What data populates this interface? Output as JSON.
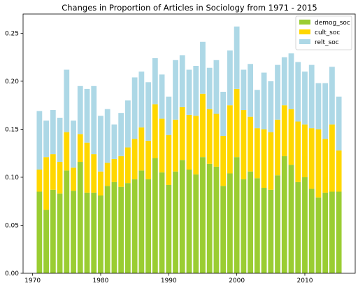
{
  "chart_data": {
    "type": "bar",
    "stacked": true,
    "title": "Changes in Proportion of Articles in Sociology from 1971 - 2015",
    "xlabel": "",
    "ylabel": "",
    "x": [
      1971,
      1972,
      1973,
      1974,
      1975,
      1976,
      1977,
      1978,
      1979,
      1980,
      1981,
      1982,
      1983,
      1984,
      1985,
      1986,
      1987,
      1988,
      1989,
      1990,
      1991,
      1992,
      1993,
      1994,
      1995,
      1996,
      1997,
      1998,
      1999,
      2000,
      2001,
      2002,
      2003,
      2004,
      2005,
      2006,
      2007,
      2008,
      2009,
      2010,
      2011,
      2012,
      2013,
      2014,
      2015
    ],
    "xlim": [
      1968.6,
      2017.4
    ],
    "ylim": [
      0,
      0.27
    ],
    "x_ticks": [
      1970,
      1980,
      1990,
      2000,
      2010
    ],
    "y_ticks": [
      0.0,
      0.05,
      0.1,
      0.15,
      0.2,
      0.25
    ],
    "x_tick_labels": [
      "1970",
      "1980",
      "1990",
      "2000",
      "2010"
    ],
    "y_tick_labels": [
      "0.00",
      "0.05",
      "0.10",
      "0.15",
      "0.20",
      "0.25"
    ],
    "grid": false,
    "legend_position": "top-right",
    "series": [
      {
        "name": "demog_soc",
        "color": "#9acd32",
        "values": [
          0.085,
          0.066,
          0.087,
          0.083,
          0.107,
          0.086,
          0.116,
          0.084,
          0.084,
          0.081,
          0.091,
          0.095,
          0.09,
          0.094,
          0.098,
          0.107,
          0.098,
          0.12,
          0.105,
          0.092,
          0.106,
          0.118,
          0.108,
          0.103,
          0.121,
          0.114,
          0.111,
          0.091,
          0.104,
          0.121,
          0.098,
          0.106,
          0.099,
          0.089,
          0.087,
          0.102,
          0.122,
          0.113,
          0.095,
          0.1,
          0.088,
          0.079,
          0.084,
          0.085,
          0.085
        ]
      },
      {
        "name": "cult_soc",
        "color": "#ffd700",
        "values": [
          0.023,
          0.055,
          0.037,
          0.033,
          0.04,
          0.024,
          0.029,
          0.052,
          0.04,
          0.025,
          0.024,
          0.024,
          0.032,
          0.037,
          0.042,
          0.045,
          0.04,
          0.056,
          0.056,
          0.052,
          0.054,
          0.055,
          0.057,
          0.061,
          0.066,
          0.057,
          0.055,
          0.052,
          0.071,
          0.071,
          0.072,
          0.057,
          0.052,
          0.061,
          0.06,
          0.058,
          0.053,
          0.058,
          0.063,
          0.055,
          0.063,
          0.071,
          0.056,
          0.07,
          0.043
        ]
      },
      {
        "name": "relt_soc",
        "color": "#add8e6",
        "values": [
          0.061,
          0.038,
          0.046,
          0.046,
          0.065,
          0.049,
          0.05,
          0.056,
          0.071,
          0.058,
          0.056,
          0.036,
          0.045,
          0.049,
          0.064,
          0.058,
          0.061,
          0.048,
          0.046,
          0.04,
          0.062,
          0.054,
          0.047,
          0.052,
          0.054,
          0.043,
          0.056,
          0.046,
          0.057,
          0.065,
          0.042,
          0.055,
          0.04,
          0.059,
          0.053,
          0.057,
          0.05,
          0.058,
          0.062,
          0.055,
          0.066,
          0.048,
          0.058,
          0.06,
          0.056
        ]
      }
    ]
  }
}
